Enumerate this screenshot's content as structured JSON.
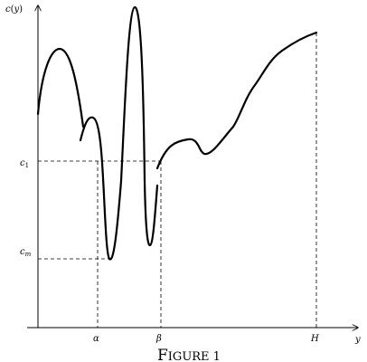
{
  "labels": {
    "y_axis_c": "c",
    "y_axis_paren_open": "(",
    "y_axis_var": "y",
    "y_axis_paren_close": ")",
    "x_axis": "y",
    "c1_base": "c",
    "c1_sub": "1",
    "cm_base": "c",
    "cm_sub": "m",
    "alpha": "α",
    "beta": "β",
    "H": "H"
  },
  "caption": {
    "first_letter": "F",
    "rest": "IGURE 1"
  }
}
